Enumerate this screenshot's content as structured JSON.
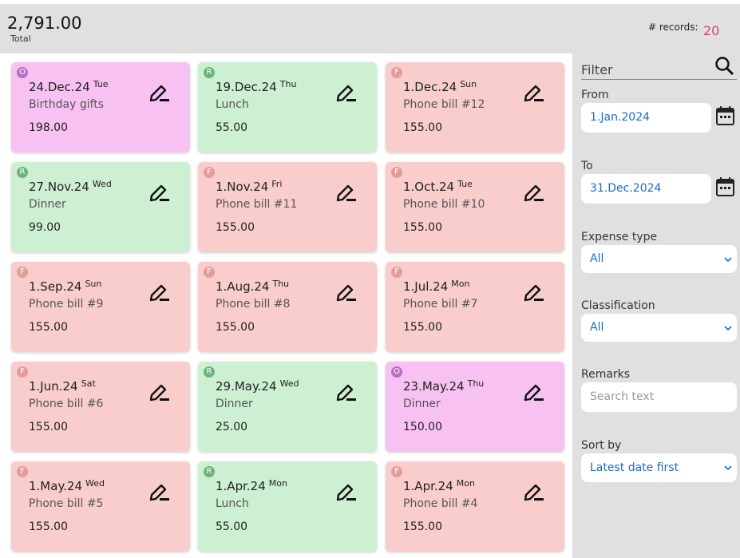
{
  "header": {
    "total": "2,791.00",
    "total_label": "Total",
    "records_label": "# records:",
    "records": "20"
  },
  "cards": [
    {
      "badge": "O",
      "date": "24.Dec.24",
      "weekday": "Tue",
      "title": "Birthday gifts",
      "amount": "198.00",
      "color": "#f7c1f2",
      "badge_color": "#b670c2"
    },
    {
      "badge": "R",
      "date": "19.Dec.24",
      "weekday": "Thu",
      "title": "Lunch",
      "amount": "55.00",
      "color": "#ccf0d1",
      "badge_color": "#6bb57b"
    },
    {
      "badge": "F",
      "date": "1.Dec.24",
      "weekday": "Sun",
      "title": "Phone bill #12",
      "amount": "155.00",
      "color": "#f8cdcb",
      "badge_color": "#e39c99"
    },
    {
      "badge": "R",
      "date": "27.Nov.24",
      "weekday": "Wed",
      "title": "Dinner",
      "amount": "99.00",
      "color": "#ccf0d1",
      "badge_color": "#6bb57b"
    },
    {
      "badge": "F",
      "date": "1.Nov.24",
      "weekday": "Fri",
      "title": "Phone bill #11",
      "amount": "155.00",
      "color": "#f8cdcb",
      "badge_color": "#e39c99"
    },
    {
      "badge": "F",
      "date": "1.Oct.24",
      "weekday": "Tue",
      "title": "Phone bill #10",
      "amount": "155.00",
      "color": "#f8cdcb",
      "badge_color": "#e39c99"
    },
    {
      "badge": "F",
      "date": "1.Sep.24",
      "weekday": "Sun",
      "title": "Phone bill #9",
      "amount": "155.00",
      "color": "#f8cdcb",
      "badge_color": "#e39c99"
    },
    {
      "badge": "F",
      "date": "1.Aug.24",
      "weekday": "Thu",
      "title": "Phone bill #8",
      "amount": "155.00",
      "color": "#f8cdcb",
      "badge_color": "#e39c99"
    },
    {
      "badge": "F",
      "date": "1.Jul.24",
      "weekday": "Mon",
      "title": "Phone bill #7",
      "amount": "155.00",
      "color": "#f8cdcb",
      "badge_color": "#e39c99"
    },
    {
      "badge": "F",
      "date": "1.Jun.24",
      "weekday": "Sat",
      "title": "Phone bill #6",
      "amount": "155.00",
      "color": "#f8cdcb",
      "badge_color": "#e39c99"
    },
    {
      "badge": "R",
      "date": "29.May.24",
      "weekday": "Wed",
      "title": "Dinner",
      "amount": "25.00",
      "color": "#ccf0d1",
      "badge_color": "#6bb57b"
    },
    {
      "badge": "O",
      "date": "23.May.24",
      "weekday": "Thu",
      "title": "Dinner",
      "amount": "150.00",
      "color": "#f7c1f2",
      "badge_color": "#b670c2"
    },
    {
      "badge": "F",
      "date": "1.May.24",
      "weekday": "Wed",
      "title": "Phone bill #5",
      "amount": "155.00",
      "color": "#f8cdcb",
      "badge_color": "#e39c99"
    },
    {
      "badge": "R",
      "date": "1.Apr.24",
      "weekday": "Mon",
      "title": "Lunch",
      "amount": "55.00",
      "color": "#ccf0d1",
      "badge_color": "#6bb57b"
    },
    {
      "badge": "F",
      "date": "1.Apr.24",
      "weekday": "Mon",
      "title": "Phone bill #4",
      "amount": "155.00",
      "color": "#f8cdcb",
      "badge_color": "#e39c99"
    }
  ],
  "filter": {
    "title": "Filter",
    "from_label": "From",
    "from": "1.Jan.2024",
    "to_label": "To",
    "to": "31.Dec.2024",
    "expense_type_label": "Expense type",
    "expense_type": "All",
    "classification_label": "Classification",
    "classification": "All",
    "remarks_label": "Remarks",
    "remarks_placeholder": "Search text",
    "sort_label": "Sort by",
    "sort": "Latest date first"
  }
}
